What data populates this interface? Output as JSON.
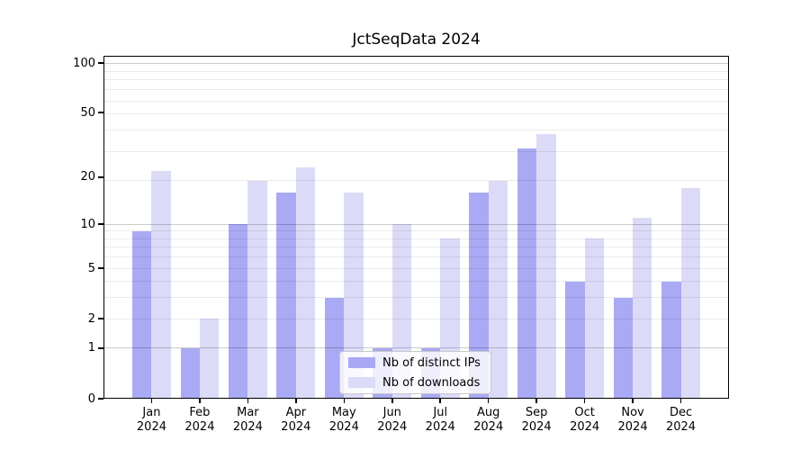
{
  "figure": {
    "title": "JctSeqData 2024",
    "background_color": "#ffffff",
    "axis_color": "#000000",
    "text_color": "#000000",
    "grid_major_color": "rgba(0,0,0,0.20)",
    "grid_minor_color": "rgba(0,0,0,0.08)"
  },
  "chart_data": {
    "type": "bar",
    "title": "JctSeqData 2024",
    "categories": [
      "Jan",
      "Feb",
      "Mar",
      "Apr",
      "May",
      "Jun",
      "Jul",
      "Aug",
      "Sep",
      "Oct",
      "Nov",
      "Dec"
    ],
    "year_label": "2024",
    "series": [
      {
        "name": "Nb of distinct IPs",
        "color": "#a9a9f4",
        "values": [
          9,
          1,
          10,
          16,
          3,
          1,
          1,
          16,
          30,
          4,
          3,
          4
        ]
      },
      {
        "name": "Nb of downloads",
        "color": "#dbdbf8",
        "values": [
          22,
          2,
          19,
          23,
          16,
          10,
          8,
          19,
          37,
          8,
          11,
          17
        ]
      }
    ],
    "yscale": "log1p",
    "ylim": [
      0,
      110
    ],
    "yticks": [
      0,
      1,
      2,
      5,
      10,
      20,
      50,
      100
    ],
    "grid": "on",
    "grid_major_values": [
      1,
      10,
      100
    ],
    "grid_minor_values": [
      2,
      3,
      4,
      5,
      6,
      7,
      8,
      9,
      19,
      29,
      39,
      49,
      59,
      69,
      79,
      89
    ],
    "legend_position": "inside-lower-center"
  }
}
